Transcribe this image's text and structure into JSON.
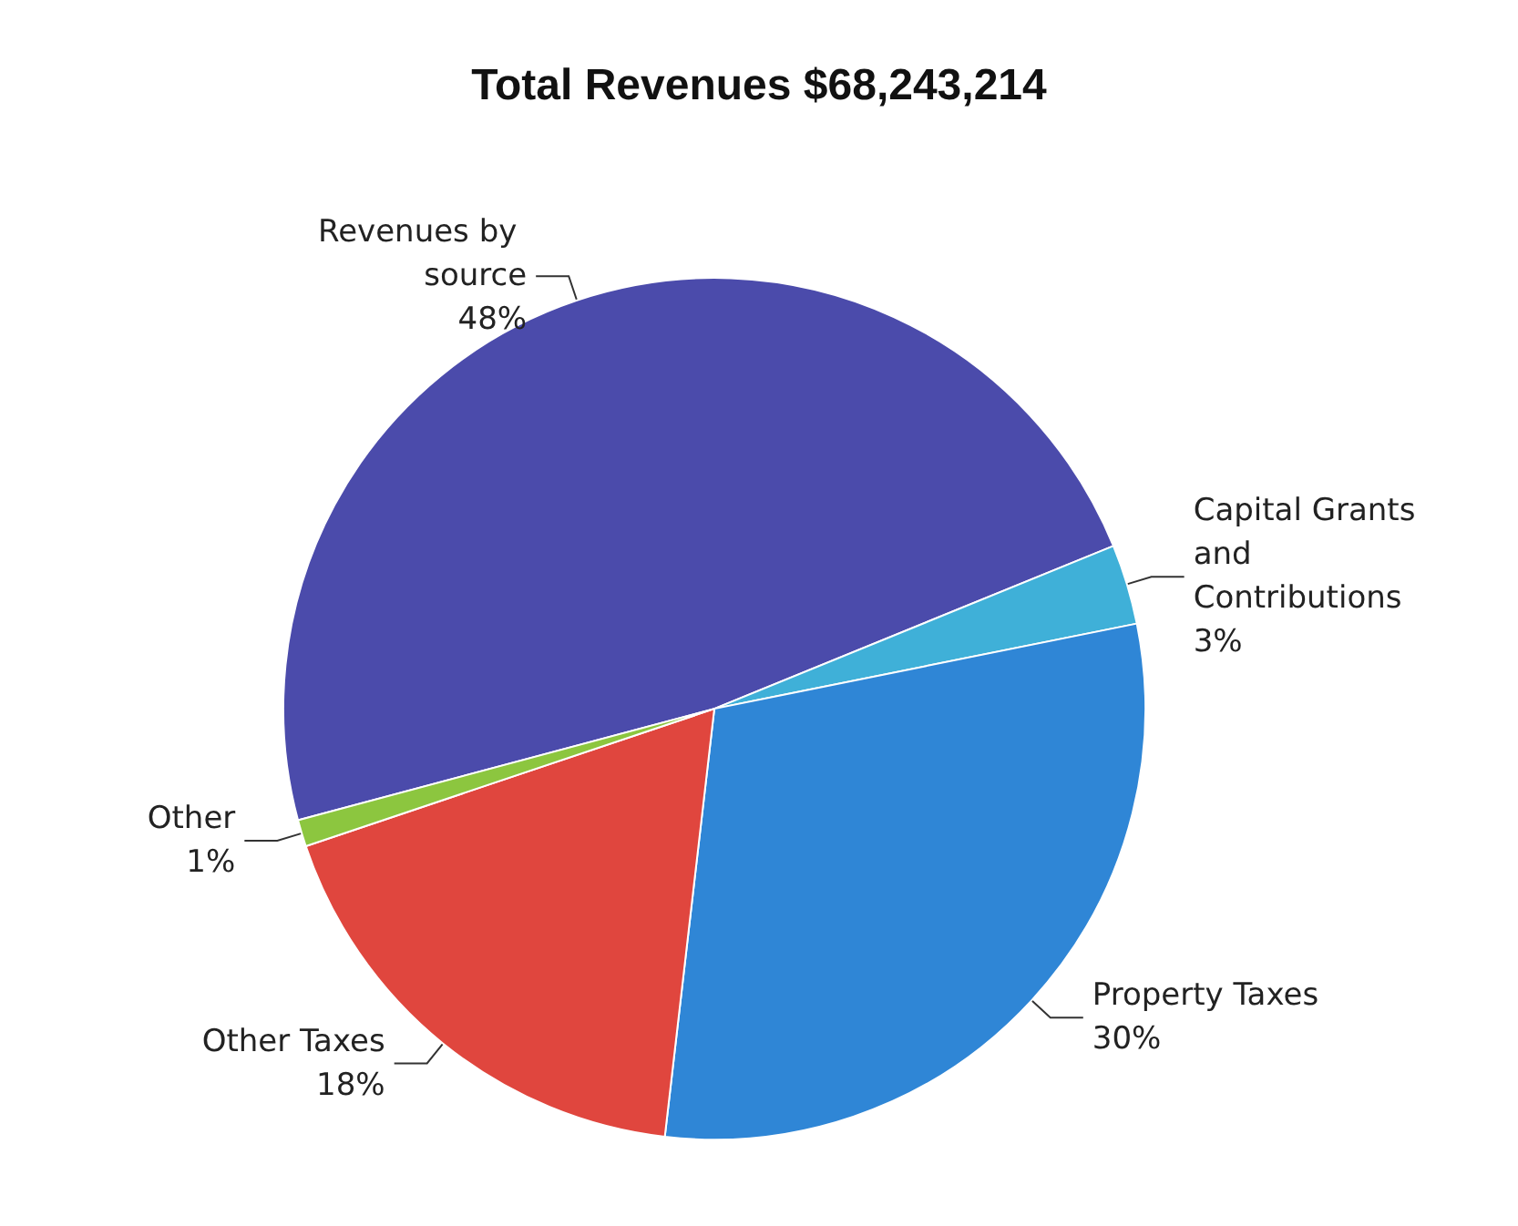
{
  "chart_data": {
    "type": "pie",
    "title": "Total Revenues $68,243,214",
    "categories": [
      "Revenues by source",
      "Capital Grants and Contributions",
      "Property Taxes",
      "Other Taxes",
      "Other"
    ],
    "values": [
      48,
      3,
      30,
      18,
      1
    ],
    "colors": [
      "#4b4bab",
      "#3fb0d8",
      "#2f86d6",
      "#e0463e",
      "#8cc63f"
    ],
    "value_labels": [
      "48%",
      "3%",
      "30%",
      "18%",
      "1%"
    ],
    "legend": false
  }
}
